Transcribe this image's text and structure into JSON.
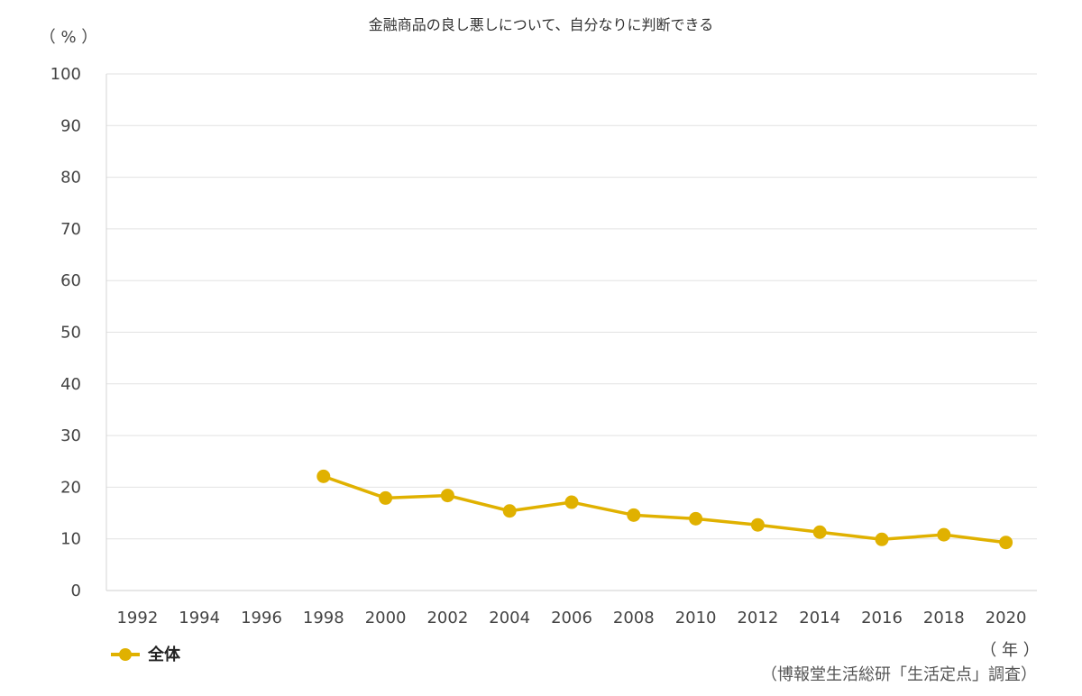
{
  "chart_data": {
    "type": "line",
    "title": "金融商品の良し悪しについて、自分なりに判断できる",
    "ylabel": "（ % ）",
    "xlabel": "（ 年 ）",
    "source": "（博報堂生活総研「生活定点」調査）",
    "ylim": [
      0,
      100
    ],
    "yticks": [
      0,
      10,
      20,
      30,
      40,
      50,
      60,
      70,
      80,
      90,
      100
    ],
    "categories": [
      "1992",
      "1994",
      "1996",
      "1998",
      "2000",
      "2002",
      "2004",
      "2006",
      "2008",
      "2010",
      "2012",
      "2014",
      "2016",
      "2018",
      "2020"
    ],
    "grid": true,
    "legend_position": "bottom-left",
    "series": [
      {
        "name": "全体",
        "color": "#E0B100",
        "values": [
          null,
          null,
          null,
          22.1,
          17.9,
          18.4,
          15.4,
          17.1,
          14.6,
          13.9,
          12.7,
          11.3,
          9.9,
          10.8,
          9.3
        ]
      }
    ]
  }
}
